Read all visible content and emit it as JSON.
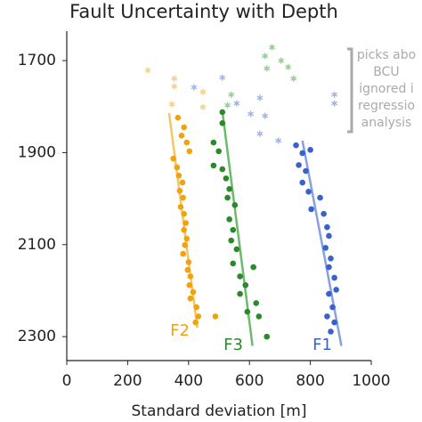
{
  "chart_data": {
    "type": "scatter",
    "title": "Fault Uncertainty with Depth",
    "x_label": "Standard deviation [m]",
    "xlim": [
      0,
      1000
    ],
    "xticks": [
      0,
      200,
      400,
      600,
      800,
      1000
    ],
    "ylim": [
      1636,
      2352
    ],
    "y_inverted": true,
    "yticks": [
      1700,
      1900,
      2100,
      2300
    ],
    "annotation": [
      "picks abo",
      "BCU",
      "ignored i",
      "regressio",
      "analysis"
    ],
    "series": [
      {
        "name": "F2",
        "color": "#f0a30a",
        "fit_color": "#f5c566",
        "faded_color": "#f7cf80",
        "x": [
          365,
          385,
          377,
          394,
          403,
          350,
          362,
          368,
          380,
          371,
          382,
          374,
          385,
          391,
          385,
          394,
          388,
          382,
          400,
          397,
          406,
          403,
          415,
          406,
          426,
          432,
          423,
          488
        ],
        "values": [
          1824,
          1845,
          1863,
          1878,
          1897,
          1913,
          1932,
          1950,
          1965,
          1983,
          1998,
          2018,
          2033,
          2053,
          2068,
          2087,
          2101,
          2120,
          2138,
          2155,
          2169,
          2188,
          2203,
          2217,
          2236,
          2256,
          2269,
          2256
        ],
        "above_bcu": {
          "x": [
            266,
            353,
            353,
            447,
            345,
            447
          ],
          "values": [
            1721,
            1739,
            1756,
            1768,
            1795,
            1801
          ]
        },
        "fit": {
          "x": [
            336,
            429
          ],
          "values": [
            1814,
            2281
          ]
        }
      },
      {
        "name": "F3",
        "color": "#2a8a2a",
        "fit_color": "#6cba6c",
        "faded_color": "#8fcf8f",
        "x": [
          511,
          482,
          499,
          482,
          511,
          523,
          534,
          528,
          552,
          534,
          546,
          540,
          558,
          546,
          613,
          569,
          587,
          569,
          622,
          593,
          631,
          657,
          511
        ],
        "values": [
          1812,
          1878,
          1897,
          1928,
          1936,
          1956,
          1979,
          1998,
          2014,
          2045,
          2068,
          2091,
          2110,
          2141,
          2149,
          2169,
          2188,
          2207,
          2227,
          2246,
          2256,
          2300,
          1836
        ],
        "above_bcu": {
          "x": [
            674,
            651,
            704,
            727,
            657,
            745,
            540,
            528
          ],
          "values": [
            1671,
            1690,
            1700,
            1714,
            1717,
            1739,
            1774,
            1797
          ]
        },
        "fit": {
          "x": [
            511,
            610
          ],
          "values": [
            1810,
            2320
          ]
        }
      },
      {
        "name": "F1",
        "color": "#3a62cc",
        "fit_color": "#86a0e2",
        "faded_color": "#9fb4ea",
        "x": [
          753,
          774,
          800,
          762,
          785,
          774,
          794,
          832,
          803,
          844,
          855,
          861,
          850,
          867,
          861,
          879,
          885,
          861,
          873,
          855,
          879,
          867
        ],
        "values": [
          1884,
          1901,
          1894,
          1927,
          1940,
          1965,
          1985,
          1998,
          2023,
          2033,
          2062,
          2081,
          2107,
          2130,
          2149,
          2172,
          2198,
          2207,
          2236,
          2256,
          2269,
          2289
        ],
        "above_bcu": {
          "x": [
            511,
            418,
            634,
            558,
            604,
            651,
            634,
            695,
            879,
            879
          ],
          "values": [
            1737,
            1758,
            1781,
            1793,
            1816,
            1820,
            1859,
            1874,
            1774,
            1793
          ]
        },
        "fit": {
          "x": [
            774,
            902
          ],
          "values": [
            1874,
            2320
          ]
        }
      }
    ]
  }
}
